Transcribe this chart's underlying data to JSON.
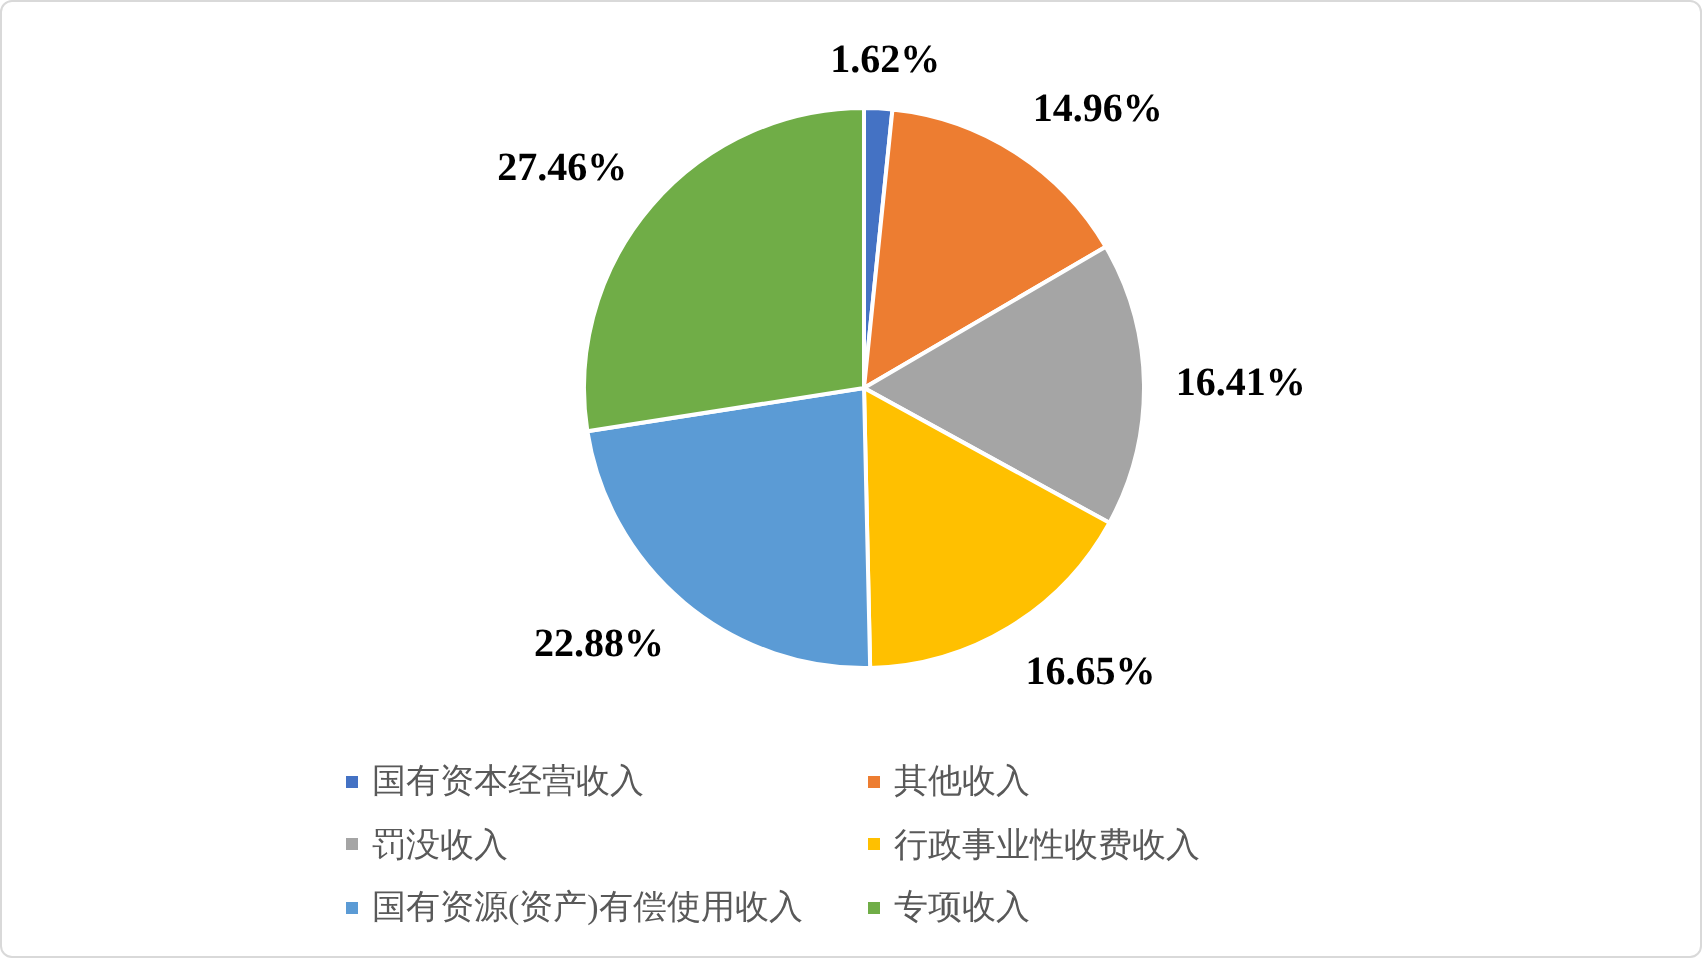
{
  "chart_data": {
    "type": "pie",
    "categories": [
      "国有资本经营收入",
      "其他收入",
      "罚没收入",
      "行政事业性收费收入",
      "国有资源(资产)有偿使用收入",
      "专项收入"
    ],
    "values": [
      1.62,
      14.96,
      16.41,
      16.65,
      22.88,
      27.46
    ],
    "colors": [
      "#4472c4",
      "#ed7d31",
      "#a5a5a5",
      "#ffc000",
      "#5b9bd5",
      "#70ad47"
    ],
    "value_labels": [
      "1.62%",
      "14.96%",
      "16.41%",
      "16.65%",
      "22.88%",
      "27.46%"
    ],
    "legend": "bottom"
  }
}
